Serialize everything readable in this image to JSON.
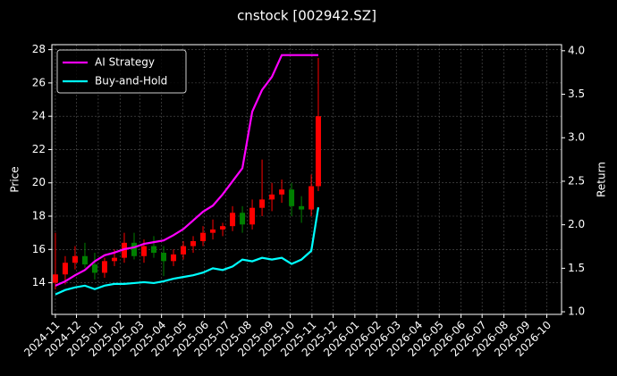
{
  "chart_data": {
    "type": "candlestick",
    "title": "cnstock [002942.SZ]",
    "ylabel": "Price",
    "y2label": "Return",
    "x": [
      "2024-11-01",
      "2024-11-15",
      "2024-11-29",
      "2024-12-13",
      "2024-12-27",
      "2025-01-10",
      "2025-01-24",
      "2025-02-07",
      "2025-02-21",
      "2025-03-07",
      "2025-03-21",
      "2025-04-04",
      "2025-04-18",
      "2025-05-02",
      "2025-05-16",
      "2025-05-30",
      "2025-06-13",
      "2025-06-27",
      "2025-07-11",
      "2025-07-25",
      "2025-08-08",
      "2025-08-22",
      "2025-09-05",
      "2025-09-19",
      "2025-10-03",
      "2025-10-17",
      "2025-10-31",
      "2025-11-10"
    ],
    "open": [
      14.0,
      14.5,
      15.2,
      15.6,
      15.1,
      14.6,
      15.3,
      15.5,
      16.4,
      15.6,
      16.2,
      15.8,
      15.3,
      15.7,
      16.2,
      16.5,
      17.0,
      17.2,
      17.4,
      18.2,
      17.5,
      18.5,
      19.0,
      19.3,
      19.6,
      18.6,
      18.4,
      19.8
    ],
    "high": [
      17.0,
      15.6,
      16.2,
      16.4,
      15.8,
      15.5,
      16.0,
      17.0,
      17.0,
      16.6,
      16.8,
      16.2,
      16.0,
      16.5,
      16.8,
      17.4,
      17.8,
      17.6,
      18.6,
      18.6,
      19.0,
      21.4,
      20.0,
      20.2,
      20.0,
      19.2,
      20.5,
      27.5
    ],
    "low": [
      13.6,
      13.9,
      14.8,
      14.9,
      14.2,
      14.3,
      15.0,
      15.2,
      15.4,
      15.2,
      15.5,
      14.4,
      15.0,
      15.4,
      15.8,
      16.2,
      16.6,
      16.8,
      17.1,
      17.0,
      17.2,
      18.0,
      18.3,
      18.8,
      18.0,
      17.6,
      18.0,
      19.5
    ],
    "close": [
      14.5,
      15.2,
      15.6,
      15.1,
      14.6,
      15.3,
      15.5,
      16.4,
      15.6,
      16.2,
      15.8,
      15.3,
      15.7,
      16.2,
      16.5,
      17.0,
      17.2,
      17.4,
      18.2,
      17.5,
      18.5,
      19.0,
      19.3,
      19.6,
      18.6,
      18.4,
      19.8,
      24.0
    ],
    "up_color": "#ff0000",
    "down_color": "#008000",
    "series": [
      {
        "name": "AI Strategy",
        "color": "#ff00ff",
        "axis": "y2",
        "values": [
          1.3,
          1.35,
          1.42,
          1.48,
          1.58,
          1.65,
          1.68,
          1.72,
          1.74,
          1.78,
          1.8,
          1.82,
          1.88,
          1.95,
          2.05,
          2.15,
          2.22,
          2.35,
          2.5,
          2.65,
          3.3,
          3.55,
          3.7,
          3.95,
          3.95,
          3.95,
          3.95,
          3.95
        ]
      },
      {
        "name": "Buy-and-Hold",
        "color": "#00ffff",
        "axis": "y2",
        "values": [
          1.2,
          1.25,
          1.28,
          1.3,
          1.26,
          1.3,
          1.32,
          1.32,
          1.33,
          1.34,
          1.33,
          1.35,
          1.38,
          1.4,
          1.42,
          1.45,
          1.5,
          1.48,
          1.52,
          1.6,
          1.58,
          1.62,
          1.6,
          1.62,
          1.55,
          1.6,
          1.7,
          2.2
        ]
      }
    ],
    "xlim": [
      "2024-10-27",
      "2026-10-22"
    ],
    "xticks": [
      "2024-11",
      "2024-12",
      "2025-01",
      "2025-02",
      "2025-03",
      "2025-04",
      "2025-05",
      "2025-06",
      "2025-07",
      "2025-08",
      "2025-09",
      "2025-10",
      "2025-11",
      "2025-12",
      "2026-01",
      "2026-02",
      "2026-03",
      "2026-04",
      "2026-05",
      "2026-06",
      "2026-07",
      "2026-08",
      "2026-09",
      "2026-10"
    ],
    "ylim": [
      12.1,
      28.3
    ],
    "yticks": [
      14,
      16,
      18,
      20,
      22,
      24,
      26,
      28
    ],
    "y2lim": [
      0.97,
      4.07
    ],
    "y2ticks": [
      {
        "value": 1,
        "label": "1.0"
      },
      1.5,
      {
        "value": 2,
        "label": "2.0"
      },
      2.5,
      {
        "value": 3,
        "label": "3.0"
      },
      3.5,
      {
        "value": 4,
        "label": "4.0"
      }
    ],
    "grid": true,
    "legend": "upper left"
  }
}
